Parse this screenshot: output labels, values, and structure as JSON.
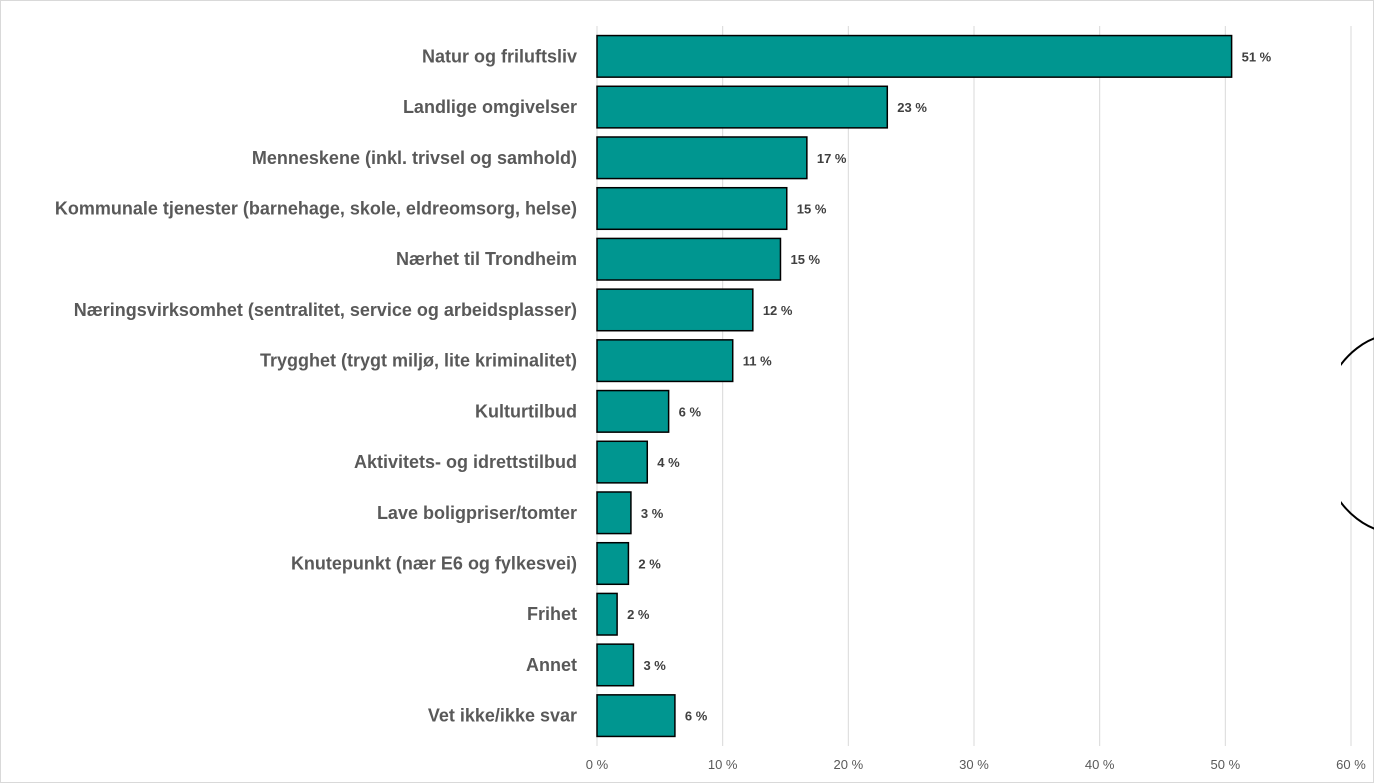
{
  "colors": {
    "bar": "#009690",
    "grid": "#d9d9d9",
    "text": "#595959"
  },
  "chart_data": {
    "type": "bar",
    "orientation": "horizontal",
    "title": "",
    "xlabel": "",
    "ylabel": "",
    "xlim": [
      0,
      60
    ],
    "grid": true,
    "legend": "none",
    "categories": [
      "Natur og friluftsliv",
      "Landlige omgivelser",
      "Menneskene (inkl. trivsel og samhold)",
      "Kommunale tjenester (barnehage, skole, eldreomsorg, helse)",
      "Nærhet til Trondheim",
      "Næringsvirksomhet (sentralitet, service og arbeidsplasser)",
      "Trygghet (trygt miljø, lite kriminalitet)",
      "Kulturtilbud",
      "Aktivitets- og idrettstilbud",
      "Lave boligpriser/tomter",
      "Knutepunkt (nær E6 og fylkesvei)",
      "Frihet",
      "Annet",
      "Vet ikke/ikke svar"
    ],
    "values": [
      50.5,
      23.1,
      16.7,
      15.1,
      14.6,
      12.4,
      10.8,
      5.7,
      4.0,
      2.7,
      2.5,
      1.6,
      2.9,
      6.2
    ],
    "value_labels": [
      "51 %",
      "23 %",
      "17 %",
      "15 %",
      "15 %",
      "12 %",
      "11 %",
      "6 %",
      "4 %",
      "3 %",
      "2 %",
      "2 %",
      "3 %",
      "6 %"
    ],
    "ticks": [
      0,
      10,
      20,
      30,
      40,
      50,
      60
    ],
    "tick_labels": [
      "0 %",
      "10 %",
      "20 %",
      "30 %",
      "40 %",
      "50 %",
      "60 %"
    ]
  }
}
